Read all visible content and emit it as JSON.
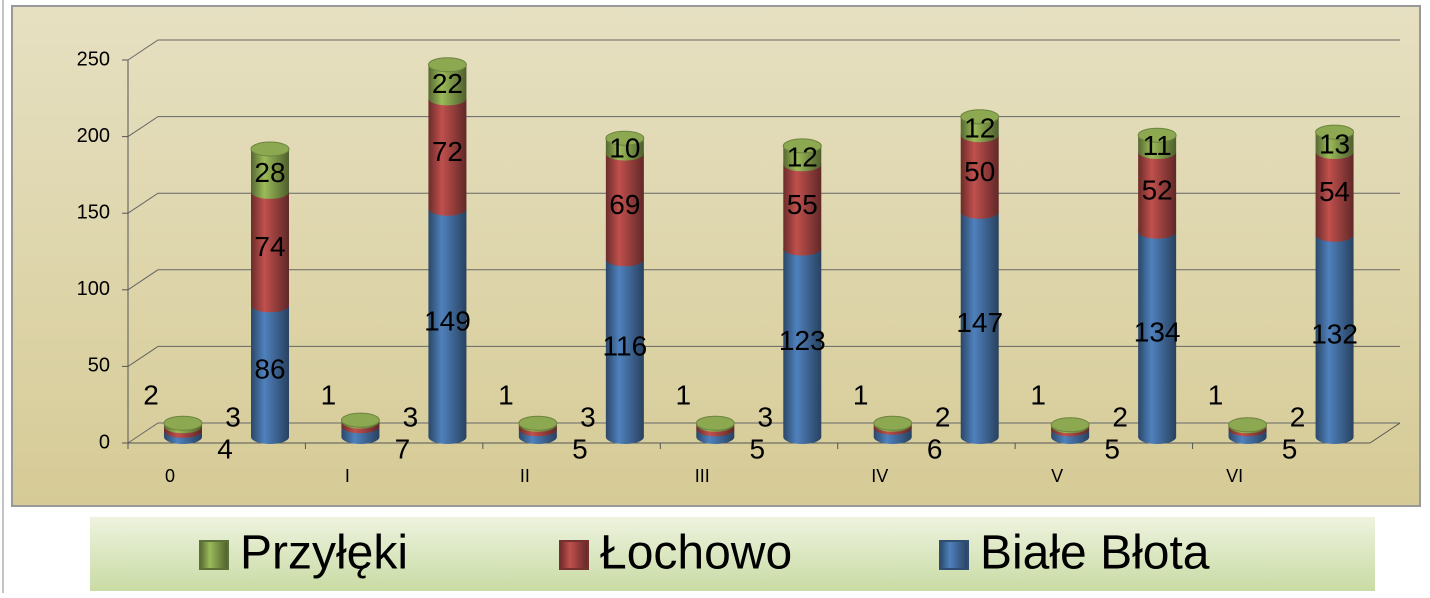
{
  "chart_data": {
    "type": "bar",
    "stacked": true,
    "categories": [
      "0",
      null,
      "I",
      null,
      "II",
      null,
      "III",
      null,
      "IV",
      null,
      "V",
      null,
      "VI",
      null
    ],
    "series": [
      {
        "name": "Przyłęki",
        "color": "#9bbb59",
        "values": [
          2,
          28,
          1,
          22,
          1,
          10,
          1,
          12,
          1,
          12,
          1,
          11,
          1,
          13
        ]
      },
      {
        "name": "Łochowo",
        "color": "#c0504d",
        "values": [
          3,
          74,
          3,
          72,
          3,
          69,
          3,
          55,
          2,
          50,
          2,
          52,
          2,
          54
        ]
      },
      {
        "name": "Białe Błota",
        "color": "#4f81bd",
        "values": [
          4,
          86,
          7,
          149,
          5,
          116,
          5,
          123,
          6,
          147,
          5,
          134,
          5,
          132
        ]
      }
    ],
    "ylim": [
      0,
      250
    ],
    "yticks": [
      0,
      50,
      100,
      150,
      200,
      250
    ],
    "grid": true,
    "legend": "bottom"
  }
}
